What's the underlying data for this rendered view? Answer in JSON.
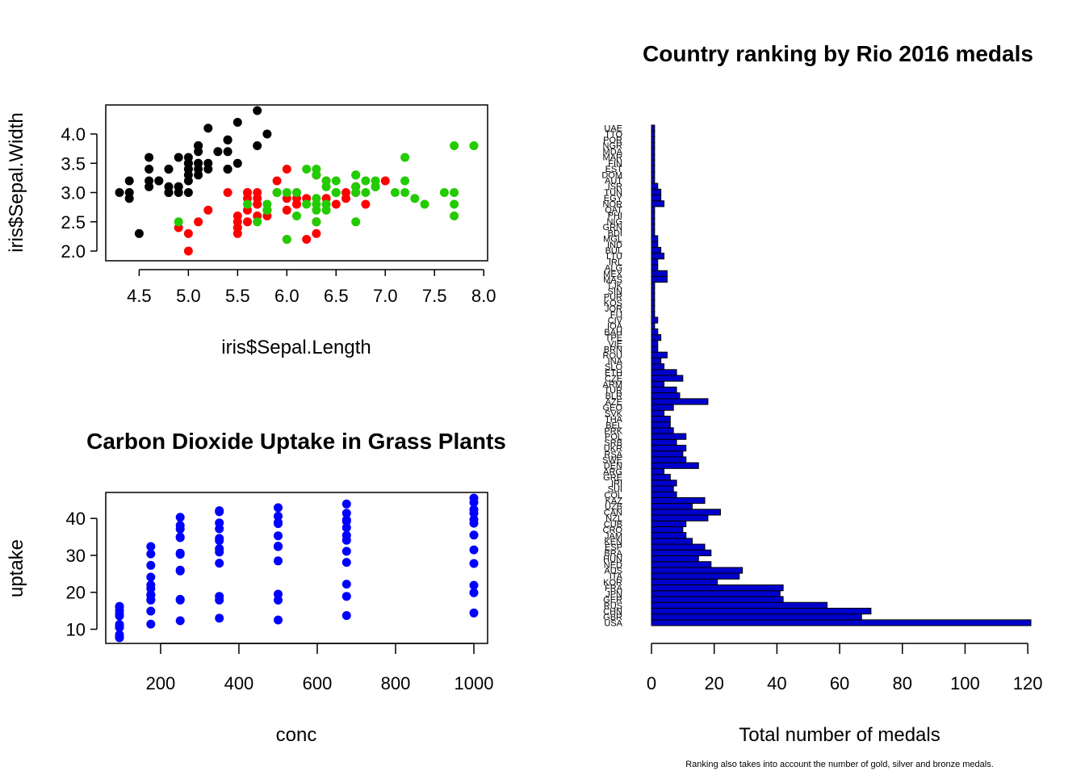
{
  "chart_data": [
    {
      "id": "iris",
      "type": "scatter",
      "title": "",
      "xlabel": "iris$Sepal.Length",
      "ylabel": "iris$Sepal.Width",
      "xlim": [
        4.3,
        7.9
      ],
      "ylim": [
        2.0,
        4.4
      ],
      "xticks": [
        4.5,
        5.0,
        5.5,
        6.0,
        6.5,
        7.0,
        7.5,
        8.0
      ],
      "xtick_labels": [
        "4.5",
        "5.0",
        "5.5",
        "6.0",
        "6.5",
        "7.0",
        "7.5",
        "8.0"
      ],
      "yticks": [
        2.0,
        2.5,
        3.0,
        3.5,
        4.0
      ],
      "ytick_labels": [
        "2.0",
        "2.5",
        "3.0",
        "3.5",
        "4.0"
      ],
      "grid": false,
      "series": [
        {
          "color": "#000000",
          "points": [
            [
              5.1,
              3.5
            ],
            [
              4.9,
              3.0
            ],
            [
              4.7,
              3.2
            ],
            [
              4.6,
              3.1
            ],
            [
              5.0,
              3.6
            ],
            [
              5.4,
              3.9
            ],
            [
              4.6,
              3.4
            ],
            [
              5.0,
              3.4
            ],
            [
              4.4,
              2.9
            ],
            [
              4.9,
              3.1
            ],
            [
              5.4,
              3.7
            ],
            [
              4.8,
              3.4
            ],
            [
              4.8,
              3.0
            ],
            [
              4.3,
              3.0
            ],
            [
              5.8,
              4.0
            ],
            [
              5.7,
              4.4
            ],
            [
              5.4,
              3.9
            ],
            [
              5.1,
              3.5
            ],
            [
              5.7,
              3.8
            ],
            [
              5.1,
              3.8
            ],
            [
              5.4,
              3.4
            ],
            [
              5.1,
              3.7
            ],
            [
              4.6,
              3.6
            ],
            [
              5.1,
              3.3
            ],
            [
              4.8,
              3.4
            ],
            [
              5.0,
              3.0
            ],
            [
              5.0,
              3.4
            ],
            [
              5.2,
              3.5
            ],
            [
              5.2,
              3.4
            ],
            [
              4.7,
              3.2
            ],
            [
              4.8,
              3.1
            ],
            [
              5.4,
              3.4
            ],
            [
              5.2,
              4.1
            ],
            [
              5.5,
              4.2
            ],
            [
              4.9,
              3.1
            ],
            [
              5.0,
              3.2
            ],
            [
              5.5,
              3.5
            ],
            [
              4.9,
              3.6
            ],
            [
              4.4,
              3.0
            ],
            [
              5.1,
              3.4
            ],
            [
              5.0,
              3.5
            ],
            [
              4.5,
              2.3
            ],
            [
              4.4,
              3.2
            ],
            [
              5.0,
              3.5
            ],
            [
              5.1,
              3.8
            ],
            [
              4.8,
              3.0
            ],
            [
              5.1,
              3.8
            ],
            [
              4.6,
              3.2
            ],
            [
              5.3,
              3.7
            ],
            [
              5.0,
              3.3
            ]
          ]
        },
        {
          "color": "#ff0000",
          "points": [
            [
              7.0,
              3.2
            ],
            [
              6.4,
              3.2
            ],
            [
              6.9,
              3.1
            ],
            [
              5.5,
              2.3
            ],
            [
              6.5,
              2.8
            ],
            [
              5.7,
              2.8
            ],
            [
              6.3,
              3.3
            ],
            [
              4.9,
              2.4
            ],
            [
              6.6,
              2.9
            ],
            [
              5.2,
              2.7
            ],
            [
              5.0,
              2.0
            ],
            [
              5.9,
              3.0
            ],
            [
              6.0,
              2.2
            ],
            [
              6.1,
              2.9
            ],
            [
              5.6,
              2.9
            ],
            [
              6.7,
              3.1
            ],
            [
              5.6,
              3.0
            ],
            [
              5.8,
              2.7
            ],
            [
              6.2,
              2.2
            ],
            [
              5.6,
              2.5
            ],
            [
              5.9,
              3.2
            ],
            [
              6.1,
              2.8
            ],
            [
              6.3,
              2.5
            ],
            [
              6.1,
              2.8
            ],
            [
              6.4,
              2.9
            ],
            [
              6.6,
              3.0
            ],
            [
              6.8,
              2.8
            ],
            [
              6.7,
              3.0
            ],
            [
              6.0,
              2.9
            ],
            [
              5.7,
              2.6
            ],
            [
              5.5,
              2.4
            ],
            [
              5.5,
              2.4
            ],
            [
              5.8,
              2.7
            ],
            [
              6.0,
              2.7
            ],
            [
              5.4,
              3.0
            ],
            [
              6.0,
              3.4
            ],
            [
              6.7,
              3.1
            ],
            [
              6.3,
              2.3
            ],
            [
              5.6,
              3.0
            ],
            [
              5.5,
              2.5
            ],
            [
              5.5,
              2.6
            ],
            [
              6.1,
              3.0
            ],
            [
              5.8,
              2.6
            ],
            [
              5.0,
              2.3
            ],
            [
              5.6,
              2.7
            ],
            [
              5.7,
              3.0
            ],
            [
              5.7,
              2.9
            ],
            [
              6.2,
              2.9
            ],
            [
              5.1,
              2.5
            ],
            [
              5.7,
              2.8
            ]
          ]
        },
        {
          "color": "#22cc00",
          "points": [
            [
              6.3,
              3.3
            ],
            [
              5.8,
              2.7
            ],
            [
              7.1,
              3.0
            ],
            [
              6.3,
              2.9
            ],
            [
              6.5,
              3.0
            ],
            [
              7.6,
              3.0
            ],
            [
              4.9,
              2.5
            ],
            [
              7.3,
              2.9
            ],
            [
              6.7,
              2.5
            ],
            [
              7.2,
              3.6
            ],
            [
              6.5,
              3.2
            ],
            [
              6.4,
              2.7
            ],
            [
              6.8,
              3.0
            ],
            [
              5.7,
              2.5
            ],
            [
              5.8,
              2.8
            ],
            [
              6.4,
              3.2
            ],
            [
              6.5,
              3.0
            ],
            [
              7.7,
              3.8
            ],
            [
              7.7,
              2.6
            ],
            [
              6.0,
              2.2
            ],
            [
              6.9,
              3.2
            ],
            [
              5.6,
              2.8
            ],
            [
              7.7,
              2.8
            ],
            [
              6.3,
              2.7
            ],
            [
              6.7,
              3.3
            ],
            [
              7.2,
              3.2
            ],
            [
              6.2,
              2.8
            ],
            [
              6.1,
              3.0
            ],
            [
              6.4,
              2.8
            ],
            [
              7.2,
              3.0
            ],
            [
              7.4,
              2.8
            ],
            [
              7.9,
              3.8
            ],
            [
              6.4,
              2.8
            ],
            [
              6.3,
              2.8
            ],
            [
              6.1,
              2.6
            ],
            [
              7.7,
              3.0
            ],
            [
              6.3,
              3.4
            ],
            [
              6.4,
              3.1
            ],
            [
              6.0,
              3.0
            ],
            [
              6.9,
              3.1
            ],
            [
              6.7,
              3.1
            ],
            [
              6.9,
              3.1
            ],
            [
              5.8,
              2.7
            ],
            [
              6.8,
              3.2
            ],
            [
              6.7,
              3.3
            ],
            [
              6.7,
              3.0
            ],
            [
              6.3,
              2.5
            ],
            [
              6.5,
              3.0
            ],
            [
              6.2,
              3.4
            ],
            [
              5.9,
              3.0
            ]
          ]
        }
      ]
    },
    {
      "id": "co2",
      "type": "scatter",
      "title": "Carbon Dioxide Uptake in Grass Plants",
      "xlabel": "conc",
      "ylabel": "uptake",
      "xlim": [
        95,
        1000
      ],
      "ylim": [
        7.7,
        45.5
      ],
      "xticks": [
        200,
        400,
        600,
        800,
        1000
      ],
      "xtick_labels": [
        "200",
        "400",
        "600",
        "800",
        "1000"
      ],
      "yticks": [
        10,
        20,
        30,
        40
      ],
      "ytick_labels": [
        "10",
        "20",
        "30",
        "40"
      ],
      "grid": false,
      "series": [
        {
          "color": "#0000ff",
          "conc": [
            95,
            175,
            250,
            350,
            500,
            675,
            1000
          ],
          "uptake_by_conc": [
            [
              16.0,
              13.6,
              16.2,
              14.2,
              15.1,
              10.6,
              7.7,
              11.3,
              10.5,
              10.6,
              8.5,
              7.8
            ],
            [
              30.4,
              27.3,
              32.4,
              24.1,
              21.0,
              19.2,
              11.4,
              19.4,
              14.9,
              18.0,
              22.0,
              17.9
            ],
            [
              34.8,
              37.1,
              40.3,
              30.3,
              38.1,
              35.0,
              12.3,
              25.8,
              18.1,
              17.9,
              30.6,
              26.0
            ],
            [
              37.2,
              41.8,
              42.1,
              34.6,
              34.0,
              38.8,
              13.0,
              27.9,
              18.9,
              17.9,
              31.8,
              30.9
            ],
            [
              35.3,
              40.6,
              42.9,
              32.5,
              38.9,
              38.6,
              12.5,
              28.5,
              19.5,
              17.9,
              32.4,
              32.4
            ],
            [
              39.2,
              41.4,
              43.9,
              35.4,
              39.6,
              37.5,
              13.7,
              28.1,
              22.2,
              18.9,
              31.1,
              34.1
            ],
            [
              39.7,
              44.3,
              45.5,
              38.7,
              41.4,
              42.4,
              14.4,
              27.8,
              21.9,
              19.9,
              31.5,
              35.5
            ]
          ]
        }
      ]
    },
    {
      "id": "rio",
      "type": "bar",
      "orientation": "horizontal",
      "title": "Country ranking by Rio 2016 medals",
      "xlabel": "Total number of medals",
      "ylabel": "",
      "note": "Ranking also takes into account the number of gold, silver and bronze medals.",
      "xlim": [
        0,
        121
      ],
      "xticks": [
        0,
        20,
        40,
        60,
        80,
        100,
        120
      ],
      "xtick_labels": [
        "0",
        "20",
        "40",
        "60",
        "80",
        "100",
        "120"
      ],
      "bar_color": "#0000cc",
      "categories": [
        "USA",
        "GBR",
        "CHN",
        "RUS",
        "GER",
        "JPN",
        "FRA",
        "KOR",
        "ITA",
        "AUS",
        "NED",
        "HUN",
        "BRA",
        "ESP",
        "KEN",
        "JAM",
        "CRO",
        "CUB",
        "NZL",
        "CAN",
        "UZB",
        "KAZ",
        "COL",
        "SUI",
        "IRI",
        "GRE",
        "ARG",
        "DEN",
        "SWE",
        "RSA",
        "UKR",
        "SRB",
        "POL",
        "PRK",
        "BEL",
        "THA",
        "SVK",
        "GEO",
        "AZE",
        "BLR",
        "TUR",
        "ARM",
        "CZE",
        "ETH",
        "SLO",
        "INA",
        "ROU",
        "BRN",
        "VIE",
        "TPE",
        "BAH",
        "IOA",
        "CIV",
        "FIJ",
        "JOR",
        "KOS",
        "PUR",
        "SIN",
        "TJK",
        "MAS",
        "MEX",
        "ALG",
        "IRL",
        "LTU",
        "BUL",
        "IND",
        "MGL",
        "BDI",
        "GRN",
        "NIG",
        "PHI",
        "QAT",
        "NOR",
        "EGY",
        "TUN",
        "ISR",
        "AUT",
        "DOM",
        "EST",
        "FIN",
        "MAR",
        "MDA",
        "NGR",
        "POR",
        "TTO",
        "UAE"
      ],
      "values": [
        121,
        67,
        70,
        56,
        42,
        41,
        42,
        21,
        28,
        29,
        19,
        15,
        19,
        17,
        13,
        11,
        10,
        11,
        18,
        22,
        13,
        17,
        8,
        7,
        8,
        6,
        4,
        15,
        11,
        10,
        11,
        8,
        11,
        7,
        6,
        6,
        4,
        7,
        18,
        9,
        8,
        4,
        10,
        8,
        4,
        3,
        5,
        2,
        2,
        3,
        2,
        1,
        2,
        1,
        1,
        1,
        1,
        1,
        1,
        5,
        5,
        2,
        2,
        4,
        3,
        2,
        2,
        1,
        1,
        1,
        1,
        1,
        4,
        3,
        3,
        2,
        1,
        1,
        1,
        1,
        1,
        1,
        1,
        1,
        1,
        1
      ]
    }
  ]
}
